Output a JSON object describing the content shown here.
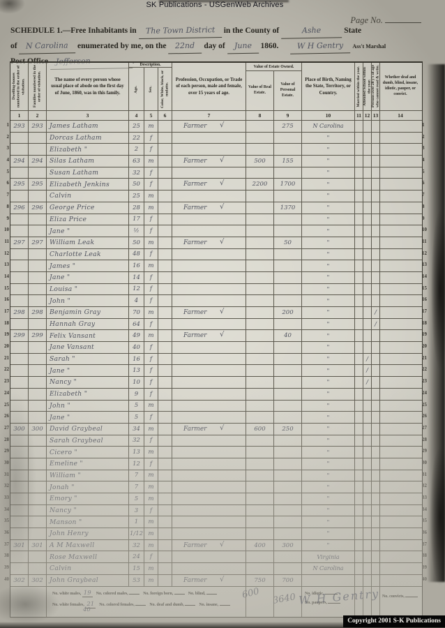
{
  "watermark_top": "SK Publications - USGenWeb Archives",
  "page_no_label": "Page No.",
  "header": {
    "schedule_prefix": "SCHEDULE 1.—Free Inhabitants in",
    "district": "The Town District",
    "county_label": "in the County of",
    "county": "Ashe",
    "state_label": "State",
    "of_label": "of",
    "state": "N Carolina",
    "enumerated_label": "enumerated by me, on the",
    "day": "22nd",
    "day_of_label": "day of",
    "month": "June",
    "year": "1860.",
    "marshal_name": "W H Gentry",
    "marshal_title": "Ass't Marshal",
    "post_office_label": "Post Office",
    "post_office": "Jefferson"
  },
  "table": {
    "columns": {
      "c1": "Dwelling-houses numbered in the order of visitation.",
      "c2": "Families numbered in the order of visitation.",
      "c3": "The name of every person whose usual place of abode on the first day of June, 1860, was in this family.",
      "group_desc": "Description.",
      "c4": "Age.",
      "c5": "Sex.",
      "c6": "Color, White, black, or mulatto.",
      "c7": "Profession, Occupation, or Trade of each person, male and female, over 15 years of age.",
      "group_estate": "Value of Estate Owned.",
      "c8": "Value of Real Estate.",
      "c9": "Value of Personal Estate.",
      "c10": "Place of Birth, Naming the State, Territory, or Country.",
      "c11": "Married within the year.",
      "c12": "Attended School within the year.",
      "c13": "Persons over 20 y's of age who cannot read & write.",
      "c14": "Whether deaf and dumb, blind, insane, idiotic, pauper, or convict."
    },
    "column_numbers": [
      "1",
      "2",
      "3",
      "4",
      "5",
      "6",
      "7",
      "8",
      "9",
      "10",
      "11",
      "12",
      "13",
      "14"
    ],
    "rows": [
      {
        "n": "1",
        "dw": "293",
        "fam": "293",
        "name": "James Latham",
        "age": "25",
        "sex": "m",
        "occ": "Farmer",
        "check": "√",
        "real": "",
        "personal": "275",
        "birth": "N Carolina"
      },
      {
        "n": "2",
        "name": "Dorcas Latham",
        "age": "22",
        "sex": "f",
        "birth": "\""
      },
      {
        "n": "3",
        "name": "Elizabeth  \"",
        "age": "2",
        "sex": "f",
        "birth": "\""
      },
      {
        "n": "4",
        "dw": "294",
        "fam": "294",
        "name": "Silas Latham",
        "age": "63",
        "sex": "m",
        "occ": "Farmer",
        "check": "√",
        "real": "500",
        "personal": "155",
        "birth": "\""
      },
      {
        "n": "5",
        "name": "Susan Latham",
        "age": "32",
        "sex": "f",
        "birth": "\""
      },
      {
        "n": "6",
        "dw": "295",
        "fam": "295",
        "name": "Elizabeth Jenkins",
        "age": "50",
        "sex": "f",
        "occ": "Farmer",
        "check": "√",
        "real": "2200",
        "personal": "1700",
        "birth": "\""
      },
      {
        "n": "7",
        "name": "Calvin",
        "age": "25",
        "sex": "m",
        "birth": "\""
      },
      {
        "n": "8",
        "dw": "296",
        "fam": "296",
        "name": "George Price",
        "age": "28",
        "sex": "m",
        "occ": "Farmer",
        "check": "√",
        "personal": "1370",
        "birth": "\""
      },
      {
        "n": "9",
        "name": "Eliza  Price",
        "age": "17",
        "sex": "f",
        "birth": "\""
      },
      {
        "n": "10",
        "name": "Jane  \"",
        "age": "½",
        "sex": "f",
        "birth": "\""
      },
      {
        "n": "11",
        "dw": "297",
        "fam": "297",
        "name": "William Leak",
        "age": "50",
        "sex": "m",
        "occ": "Farmer",
        "check": "√",
        "personal": "50",
        "birth": "\""
      },
      {
        "n": "12",
        "name": "Charlotte Leak",
        "age": "48",
        "sex": "f",
        "birth": "\""
      },
      {
        "n": "13",
        "name": "James  \"",
        "age": "16",
        "sex": "m",
        "birth": "\""
      },
      {
        "n": "14",
        "name": "Jane  \"",
        "age": "14",
        "sex": "f",
        "birth": "\""
      },
      {
        "n": "15",
        "name": "Louisa  \"",
        "age": "12",
        "sex": "f",
        "birth": "\""
      },
      {
        "n": "16",
        "name": "John  \"",
        "age": "4",
        "sex": "f",
        "birth": "\""
      },
      {
        "n": "17",
        "dw": "298",
        "fam": "298",
        "name": "Benjamin Gray",
        "age": "70",
        "sex": "m",
        "occ": "Farmer",
        "check": "√",
        "personal": "200",
        "birth": "\"",
        "r13": "∕"
      },
      {
        "n": "18",
        "name": "Hannah Gray",
        "age": "64",
        "sex": "f",
        "birth": "\"",
        "r13": "∕"
      },
      {
        "n": "19",
        "dw": "299",
        "fam": "299",
        "name": "Felix Vansant",
        "age": "49",
        "sex": "m",
        "occ": "Farmer",
        "check": "√",
        "personal": "40",
        "birth": "\""
      },
      {
        "n": "20",
        "name": "Jane Vansant",
        "age": "40",
        "sex": "f",
        "birth": "\""
      },
      {
        "n": "21",
        "name": "Sarah  \"",
        "age": "16",
        "sex": "f",
        "birth": "\"",
        "s12": "∕"
      },
      {
        "n": "22",
        "name": "Jane  \"",
        "age": "13",
        "sex": "f",
        "birth": "\"",
        "s12": "∕"
      },
      {
        "n": "23",
        "name": "Nancy  \"",
        "age": "10",
        "sex": "f",
        "birth": "\"",
        "s12": "∕"
      },
      {
        "n": "24",
        "name": "Elizabeth  \"",
        "age": "9",
        "sex": "f",
        "birth": "\""
      },
      {
        "n": "25",
        "name": "John  \"",
        "age": "5",
        "sex": "m",
        "birth": "\""
      },
      {
        "n": "26",
        "name": "Jane  \"",
        "age": "5",
        "sex": "f",
        "birth": "\""
      },
      {
        "n": "27",
        "dw": "300",
        "fam": "300",
        "name": "David Graybeal",
        "age": "34",
        "sex": "m",
        "occ": "Farmer",
        "check": "√",
        "real": "600",
        "personal": "250",
        "birth": "\""
      },
      {
        "n": "28",
        "name": "Sarah Graybeal",
        "age": "32",
        "sex": "f",
        "birth": "\""
      },
      {
        "n": "29",
        "name": "Cicero  \"",
        "age": "13",
        "sex": "m",
        "birth": "\""
      },
      {
        "n": "30",
        "name": "Emeline  \"",
        "age": "12",
        "sex": "f",
        "birth": "\""
      },
      {
        "n": "31",
        "name": "William  \"",
        "age": "7",
        "sex": "m",
        "birth": "\""
      },
      {
        "n": "32",
        "name": "Jonah  \"",
        "age": "7",
        "sex": "m",
        "birth": "\""
      },
      {
        "n": "33",
        "name": "Emory  \"",
        "age": "5",
        "sex": "m",
        "birth": "\""
      },
      {
        "n": "34",
        "name": "Nancy  \"",
        "age": "3",
        "sex": "f",
        "birth": "\""
      },
      {
        "n": "35",
        "name": "Manson  \"",
        "age": "1",
        "sex": "m",
        "birth": "\""
      },
      {
        "n": "36",
        "name": "John Henry",
        "age": "1/12",
        "sex": "m",
        "birth": "\""
      },
      {
        "n": "37",
        "dw": "301",
        "fam": "301",
        "name": "A M Maxwell",
        "age": "32",
        "sex": "m",
        "occ": "Farmer",
        "check": "√",
        "real": "400",
        "personal": "300",
        "birth": "\""
      },
      {
        "n": "38",
        "name": "Rose Maxwell",
        "age": "24",
        "sex": "f",
        "birth": "Virginia"
      },
      {
        "n": "39",
        "name": "Calvin",
        "age": "15",
        "sex": "m",
        "birth": "N Carolina"
      },
      {
        "n": "40",
        "dw": "302",
        "fam": "302",
        "name": "John Graybeal",
        "age": "53",
        "sex": "m",
        "occ": "Farmer",
        "check": "√",
        "real": "750",
        "personal": "700",
        "birth": ""
      }
    ]
  },
  "footer": {
    "stats_line1": [
      {
        "label": "No. white males,",
        "value": "19"
      },
      {
        "label": "No. colored males,",
        "value": ""
      },
      {
        "label": "No. foreign born,",
        "value": ""
      },
      {
        "label": "No. blind,",
        "value": ""
      }
    ],
    "stats_line2": [
      {
        "label": "No. white females,",
        "value": "21"
      },
      {
        "label": "No. colored females,",
        "value": ""
      },
      {
        "label": "No. deaf and dumb,",
        "value": ""
      },
      {
        "label": "No. insane,",
        "value": ""
      }
    ],
    "total": "40",
    "scrawl_real": "600",
    "scrawl_personal": "3640",
    "idiotic_label": "No. idiotic,",
    "paupers_label": "No. paupers,",
    "convicts_label": "No. convicts,"
  },
  "signature": "W H Gentry",
  "copyright": "Copyright 2001 S-K Publications"
}
